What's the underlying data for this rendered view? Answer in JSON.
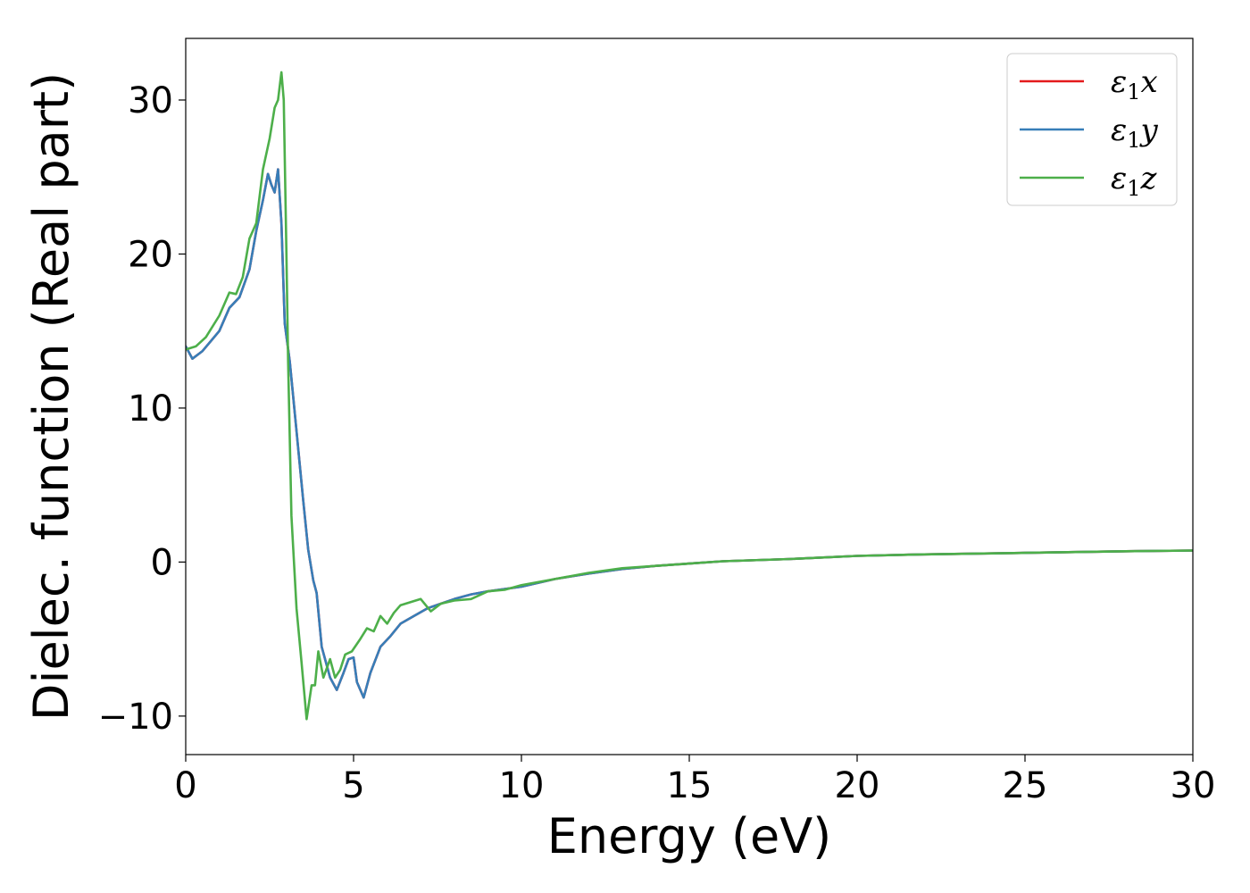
{
  "chart_data": {
    "type": "line",
    "xlabel": "Energy (eV)",
    "ylabel": "Dielec. function (Real part)",
    "xlim": [
      0,
      30
    ],
    "ylim": [
      -12.5,
      34
    ],
    "xticks": [
      0,
      5,
      10,
      15,
      20,
      25,
      30
    ],
    "xtick_labels": [
      "0",
      "5",
      "10",
      "15",
      "20",
      "25",
      "30"
    ],
    "yticks": [
      -10,
      0,
      10,
      20,
      30
    ],
    "ytick_labels": [
      "−10",
      "0",
      "10",
      "20",
      "30"
    ],
    "grid": false,
    "legend_position": "top-right",
    "series": [
      {
        "name": "ε1x",
        "legend": {
          "main": "ε",
          "sub": "1",
          "tail": "x"
        },
        "color": "#e41a1c",
        "x": [
          0.0,
          0.2,
          0.5,
          1.0,
          1.3,
          1.6,
          1.9,
          2.1,
          2.3,
          2.45,
          2.55,
          2.65,
          2.75,
          2.85,
          2.95,
          3.1,
          3.3,
          3.5,
          3.65,
          3.8,
          3.9,
          4.05,
          4.3,
          4.5,
          4.7,
          4.85,
          5.0,
          5.1,
          5.3,
          5.5,
          5.8,
          6.1,
          6.4,
          6.8,
          7.2,
          7.6,
          8.0,
          8.5,
          9.0,
          10.0,
          11.0,
          12.0,
          13.0,
          14.0,
          15.0,
          16.0,
          18.0,
          20.0,
          22.0,
          25.0,
          28.0,
          30.0
        ],
        "values": [
          14.0,
          13.2,
          13.7,
          15.0,
          16.5,
          17.2,
          19.0,
          21.5,
          23.5,
          25.2,
          24.5,
          24.0,
          25.5,
          22.0,
          15.5,
          13.0,
          8.5,
          4.0,
          0.8,
          -1.2,
          -2.0,
          -5.5,
          -7.5,
          -8.3,
          -7.2,
          -6.3,
          -6.2,
          -7.8,
          -8.8,
          -7.2,
          -5.5,
          -4.8,
          -4.0,
          -3.5,
          -3.0,
          -2.7,
          -2.4,
          -2.1,
          -1.9,
          -1.6,
          -1.1,
          -0.75,
          -0.45,
          -0.25,
          -0.1,
          0.05,
          0.2,
          0.4,
          0.5,
          0.6,
          0.7,
          0.75
        ]
      },
      {
        "name": "ε1y",
        "legend": {
          "main": "ε",
          "sub": "1",
          "tail": "y"
        },
        "color": "#377eb8",
        "x": [
          0.0,
          0.2,
          0.5,
          1.0,
          1.3,
          1.6,
          1.9,
          2.1,
          2.3,
          2.45,
          2.55,
          2.65,
          2.75,
          2.85,
          2.95,
          3.1,
          3.3,
          3.5,
          3.65,
          3.8,
          3.9,
          4.05,
          4.3,
          4.5,
          4.7,
          4.85,
          5.0,
          5.1,
          5.3,
          5.5,
          5.8,
          6.1,
          6.4,
          6.8,
          7.2,
          7.6,
          8.0,
          8.5,
          9.0,
          10.0,
          11.0,
          12.0,
          13.0,
          14.0,
          15.0,
          16.0,
          18.0,
          20.0,
          22.0,
          25.0,
          28.0,
          30.0
        ],
        "values": [
          14.0,
          13.2,
          13.7,
          15.0,
          16.5,
          17.2,
          19.0,
          21.5,
          23.5,
          25.2,
          24.5,
          24.0,
          25.5,
          22.0,
          15.5,
          13.0,
          8.5,
          4.0,
          0.8,
          -1.2,
          -2.0,
          -5.5,
          -7.5,
          -8.3,
          -7.2,
          -6.3,
          -6.2,
          -7.8,
          -8.8,
          -7.2,
          -5.5,
          -4.8,
          -4.0,
          -3.5,
          -3.0,
          -2.7,
          -2.4,
          -2.1,
          -1.9,
          -1.6,
          -1.1,
          -0.75,
          -0.45,
          -0.25,
          -0.1,
          0.05,
          0.2,
          0.4,
          0.5,
          0.6,
          0.7,
          0.75
        ]
      },
      {
        "name": "ε1z",
        "legend": {
          "main": "ε",
          "sub": "1",
          "tail": "z"
        },
        "color": "#4daf4a",
        "x": [
          0.0,
          0.3,
          0.6,
          1.0,
          1.3,
          1.5,
          1.7,
          1.9,
          2.1,
          2.3,
          2.5,
          2.65,
          2.75,
          2.85,
          2.92,
          3.0,
          3.05,
          3.15,
          3.3,
          3.45,
          3.6,
          3.75,
          3.85,
          3.95,
          4.1,
          4.3,
          4.45,
          4.6,
          4.75,
          4.95,
          5.2,
          5.4,
          5.6,
          5.8,
          6.0,
          6.2,
          6.4,
          6.7,
          7.0,
          7.3,
          7.6,
          8.0,
          8.5,
          9.0,
          9.5,
          10.0,
          11.0,
          12.0,
          13.0,
          14.0,
          15.0,
          16.0,
          18.0,
          20.0,
          22.0,
          25.0,
          28.0,
          30.0
        ],
        "values": [
          13.8,
          14.0,
          14.6,
          16.0,
          17.5,
          17.4,
          18.5,
          21.0,
          22.0,
          25.5,
          27.5,
          29.5,
          30.0,
          31.8,
          30.0,
          20.0,
          13.0,
          3.0,
          -3.0,
          -6.5,
          -10.2,
          -8.0,
          -8.0,
          -5.8,
          -7.5,
          -6.3,
          -7.5,
          -7.0,
          -6.0,
          -5.8,
          -5.0,
          -4.3,
          -4.5,
          -3.5,
          -4.0,
          -3.3,
          -2.8,
          -2.6,
          -2.4,
          -3.2,
          -2.7,
          -2.5,
          -2.4,
          -1.9,
          -1.8,
          -1.5,
          -1.1,
          -0.7,
          -0.4,
          -0.25,
          -0.1,
          0.05,
          0.2,
          0.4,
          0.5,
          0.6,
          0.7,
          0.75
        ]
      }
    ]
  }
}
